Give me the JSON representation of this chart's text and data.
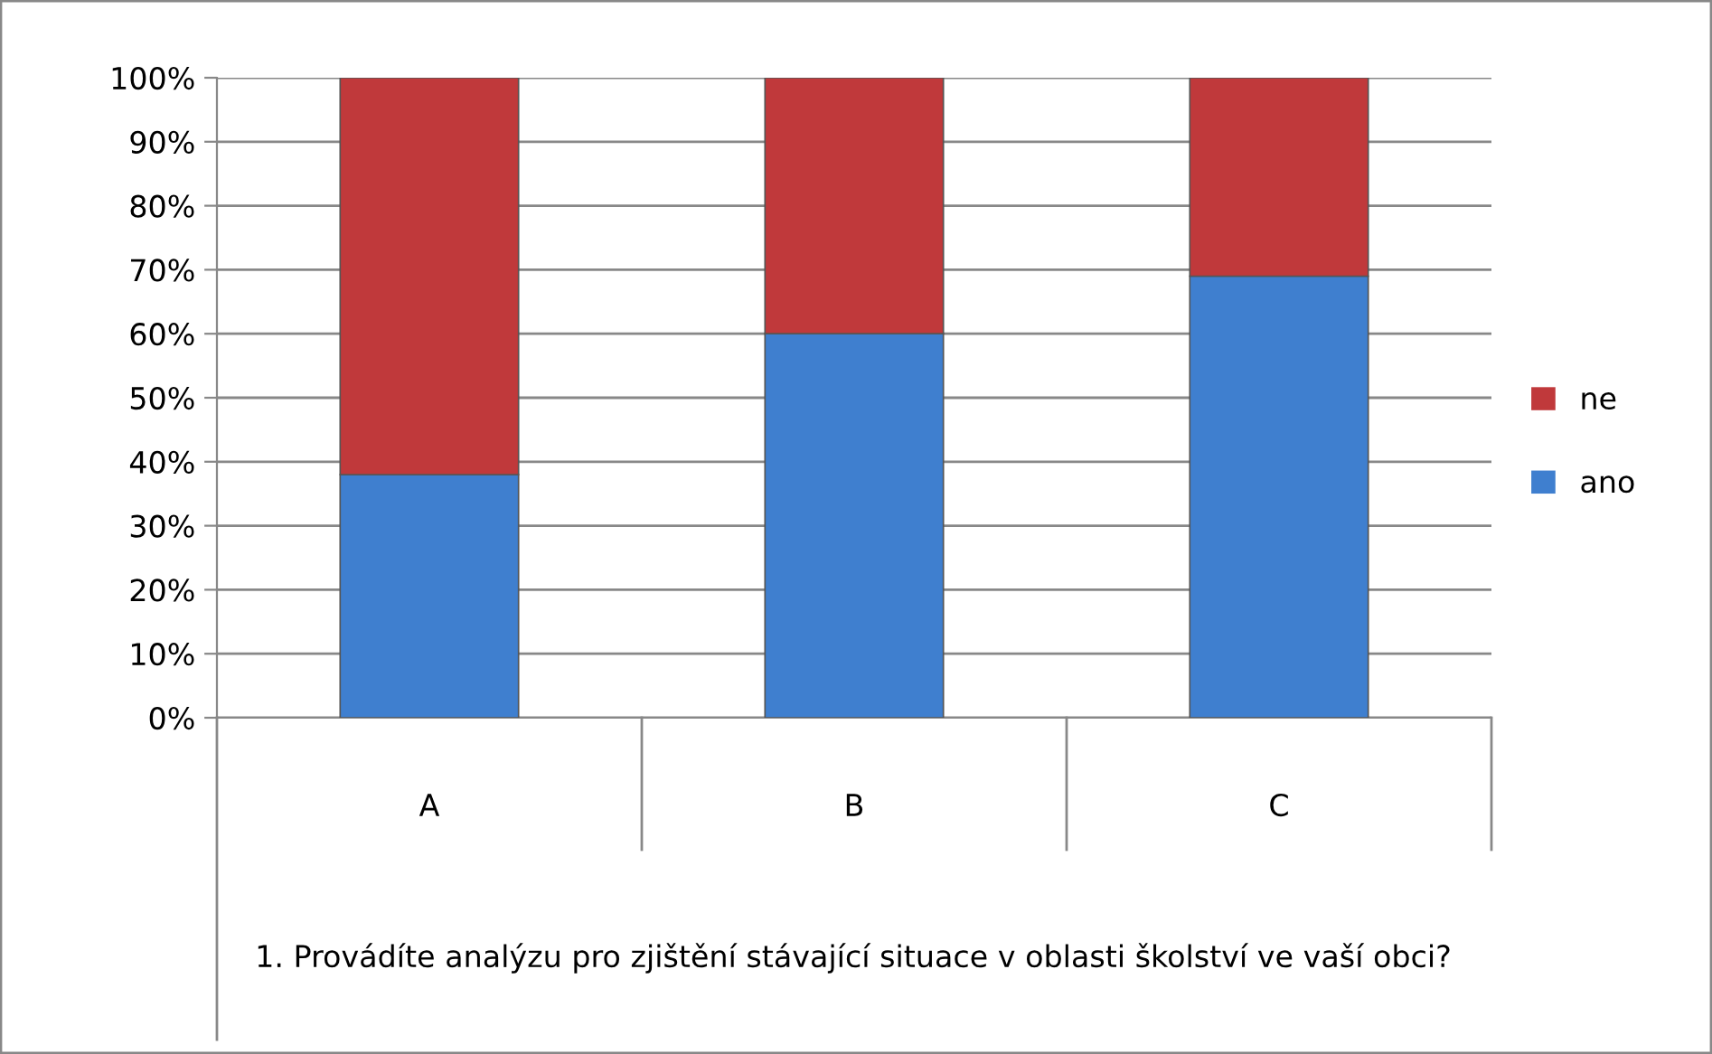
{
  "chart_data": {
    "type": "bar",
    "stacked": true,
    "categories": [
      "A",
      "B",
      "C"
    ],
    "series": [
      {
        "name": "ano",
        "color": "#3f7fcf",
        "values": [
          38,
          60,
          69
        ]
      },
      {
        "name": "ne",
        "color": "#c0393b",
        "values": [
          62,
          40,
          31
        ]
      }
    ],
    "xlabel": "1. Provádíte analýzu pro zjištění stávající situace v oblasti školství ve vaší obci?",
    "ylim": [
      0,
      100
    ],
    "yticks": [
      {
        "value": 0,
        "label": "0%"
      },
      {
        "value": 10,
        "label": "10%"
      },
      {
        "value": 20,
        "label": "20%"
      },
      {
        "value": 30,
        "label": "30%"
      },
      {
        "value": 40,
        "label": "40%"
      },
      {
        "value": 50,
        "label": "50%"
      },
      {
        "value": 60,
        "label": "60%"
      },
      {
        "value": 70,
        "label": "70%"
      },
      {
        "value": 80,
        "label": "80%"
      },
      {
        "value": 90,
        "label": "90%"
      },
      {
        "value": 100,
        "label": "100%"
      }
    ],
    "grid": "y",
    "legend": "right"
  }
}
